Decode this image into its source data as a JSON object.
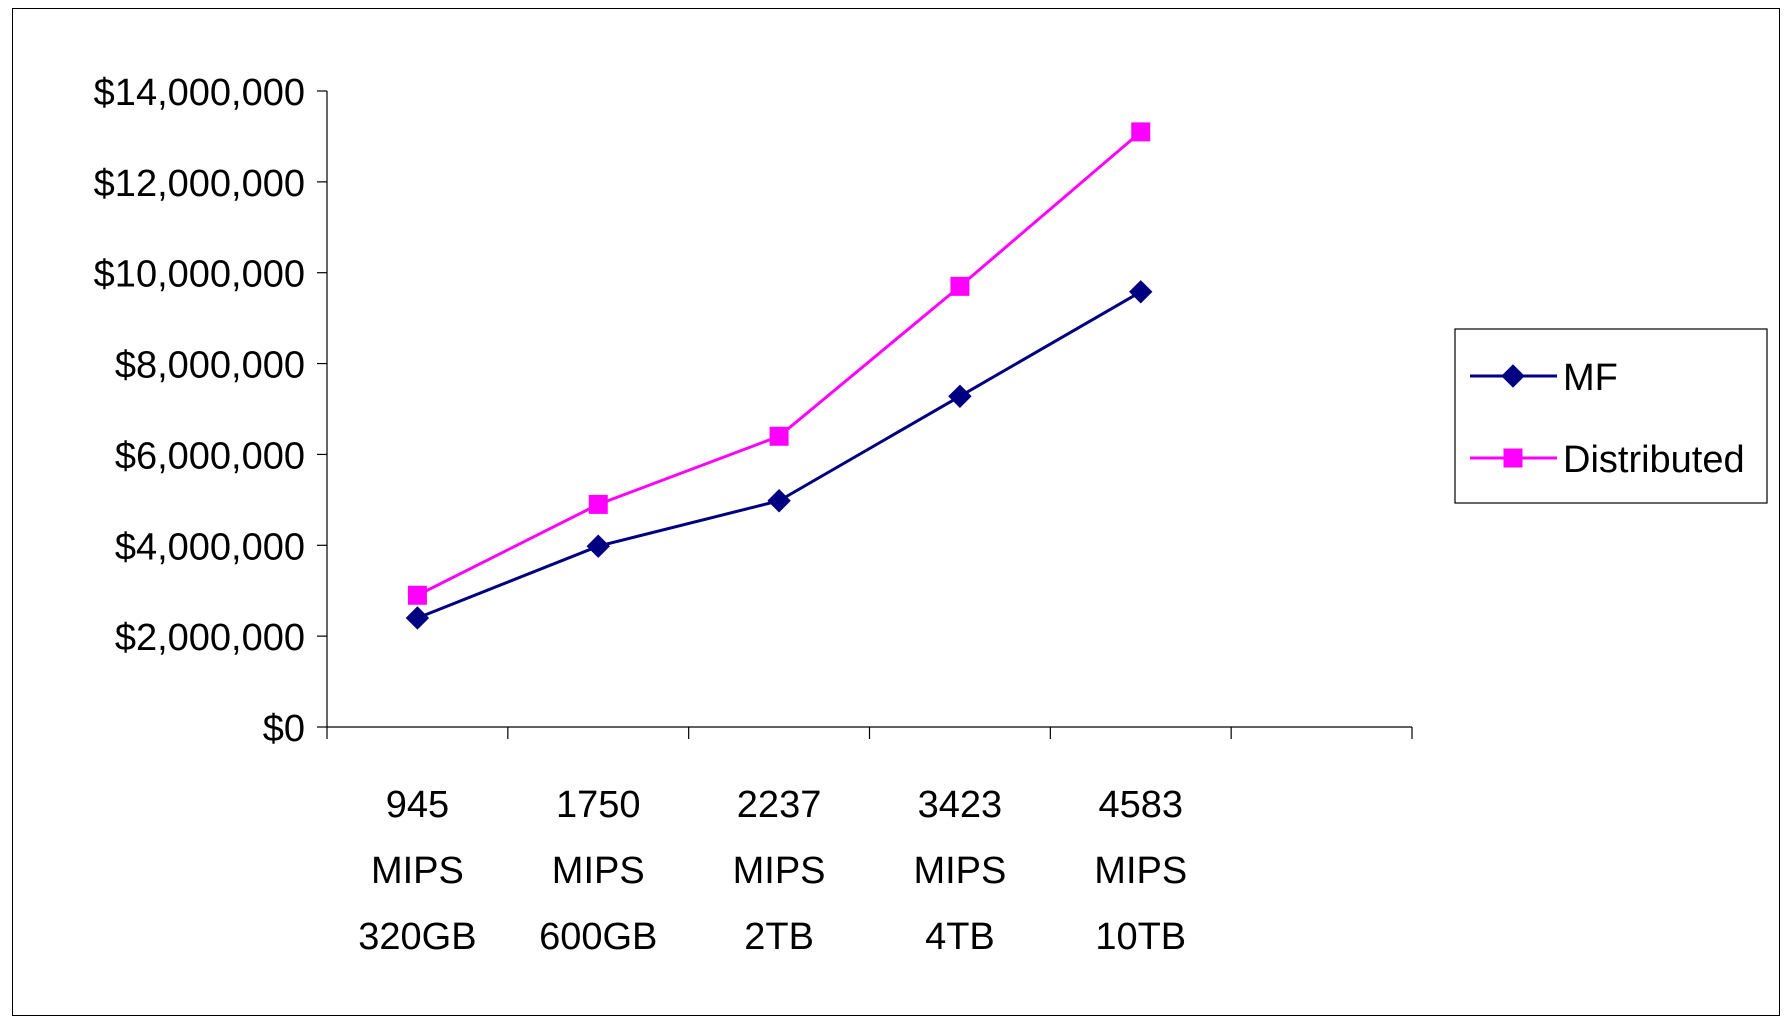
{
  "chart_data": {
    "type": "line",
    "categories": [
      [
        "945",
        "MIPS",
        "320GB"
      ],
      [
        "1750",
        "MIPS",
        "600GB"
      ],
      [
        "2237",
        "MIPS",
        "2TB"
      ],
      [
        "3423",
        "MIPS",
        "4TB"
      ],
      [
        "4583",
        "MIPS",
        "10TB"
      ]
    ],
    "empty_category_slots": 1,
    "series": [
      {
        "name": "MF",
        "values": [
          2400000,
          3980000,
          4980000,
          7280000,
          9580000
        ],
        "color": "#000080",
        "marker": "diamond"
      },
      {
        "name": "Distributed",
        "values": [
          2900000,
          4900000,
          6400000,
          9700000,
          13100000
        ],
        "color": "#ff00ff",
        "marker": "square"
      }
    ],
    "y_ticks": [
      {
        "value": 0,
        "label": "$0"
      },
      {
        "value": 2000000,
        "label": "$2,000,000"
      },
      {
        "value": 4000000,
        "label": "$4,000,000"
      },
      {
        "value": 6000000,
        "label": "$6,000,000"
      },
      {
        "value": 8000000,
        "label": "$8,000,000"
      },
      {
        "value": 10000000,
        "label": "$10,000,000"
      },
      {
        "value": 12000000,
        "label": "$12,000,000"
      },
      {
        "value": 14000000,
        "label": "$14,000,000"
      }
    ],
    "ylim": [
      0,
      14000000
    ],
    "grid": false,
    "legend": "right"
  }
}
